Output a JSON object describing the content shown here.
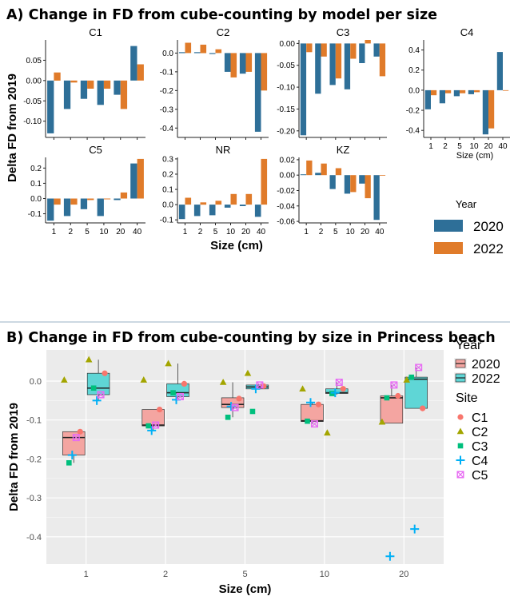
{
  "figure": {
    "panel_a_title": "A) Change in FD from cube-counting by model per size",
    "panel_b_title": "B) Change in FD from cube-counting by size in Princess beach"
  },
  "chart_data": [
    {
      "type": "bar",
      "title": "A) Change in FD from cube-counting by model per size",
      "xlabel": "Size (cm)",
      "ylabel": "Delta FD from 2019",
      "categories": [
        "1",
        "2",
        "5",
        "10",
        "20",
        "40"
      ],
      "legend": {
        "title": "Year",
        "entries": [
          "2020",
          "2022"
        ],
        "colors": [
          "#2e6f98",
          "#e07b2a"
        ],
        "placement": "right"
      },
      "colors": {
        "2020": "#2e6f98",
        "2022": "#e07b2a"
      },
      "panels": [
        {
          "title": "C1",
          "ylim": [
            -0.14,
            0.1
          ],
          "yticks": [
            0.05,
            0.0,
            -0.05,
            -0.1
          ],
          "ytick_labels": [
            "0.05",
            "0.00",
            "-0.05",
            "-0.10"
          ],
          "series": [
            {
              "name": "2020",
              "values": [
                -0.13,
                -0.07,
                -0.045,
                -0.06,
                -0.035,
                0.085
              ]
            },
            {
              "name": "2022",
              "values": [
                0.02,
                -0.005,
                -0.02,
                -0.02,
                -0.07,
                0.04
              ]
            }
          ]
        },
        {
          "title": "C2",
          "ylim": [
            -0.45,
            0.07
          ],
          "yticks": [
            0.0,
            -0.1,
            -0.2,
            -0.3,
            -0.4
          ],
          "ytick_labels": [
            "0.0",
            "-0.1",
            "-0.2",
            "-0.3",
            "-0.4"
          ],
          "series": [
            {
              "name": "2020",
              "values": [
                0.005,
                0.005,
                -0.005,
                -0.1,
                -0.11,
                -0.42
              ]
            },
            {
              "name": "2022",
              "values": [
                0.055,
                0.045,
                0.02,
                -0.13,
                -0.1,
                -0.2
              ]
            }
          ]
        },
        {
          "title": "C3",
          "ylim": [
            -0.215,
            0.008
          ],
          "yticks": [
            0.0,
            -0.05,
            -0.1,
            -0.15,
            -0.2
          ],
          "ytick_labels": [
            "0.00",
            "-0.05",
            "-0.10",
            "-0.15",
            "-0.20"
          ],
          "series": [
            {
              "name": "2020",
              "values": [
                -0.21,
                -0.115,
                -0.095,
                -0.105,
                -0.045,
                -0.03
              ]
            },
            {
              "name": "2022",
              "values": [
                -0.02,
                -0.03,
                -0.08,
                -0.035,
                0.01,
                -0.075
              ]
            }
          ]
        },
        {
          "title": "C4",
          "ylim": [
            -0.47,
            0.5
          ],
          "yticks": [
            0.4,
            0.2,
            0.0,
            -0.2,
            -0.4
          ],
          "ytick_labels": [
            "0.4",
            "0.2",
            "0.0",
            "-0.2",
            "-0.4"
          ],
          "series": [
            {
              "name": "2020",
              "values": [
                -0.19,
                -0.13,
                -0.06,
                -0.04,
                -0.44,
                0.38
              ]
            },
            {
              "name": "2022",
              "values": [
                -0.05,
                -0.03,
                -0.03,
                -0.02,
                -0.38,
                0.0
              ]
            }
          ]
        },
        {
          "title": "C5",
          "ylim": [
            -0.16,
            0.27
          ],
          "yticks": [
            0.2,
            0.1,
            0.0,
            -0.1
          ],
          "ytick_labels": [
            "0.2",
            "0.1",
            "0.0",
            "-0.1"
          ],
          "series": [
            {
              "name": "2020",
              "values": [
                -0.145,
                -0.115,
                -0.07,
                -0.115,
                -0.01,
                0.23
              ]
            },
            {
              "name": "2022",
              "values": [
                -0.04,
                -0.04,
                -0.01,
                -0.005,
                0.04,
                0.26
              ]
            }
          ]
        },
        {
          "title": "NR",
          "ylim": [
            -0.12,
            0.31
          ],
          "yticks": [
            0.3,
            0.2,
            0.1,
            0.0,
            -0.1
          ],
          "ytick_labels": [
            "0.3",
            "0.2",
            "0.1",
            "0.0",
            "-0.1"
          ],
          "series": [
            {
              "name": "2020",
              "values": [
                -0.095,
                -0.075,
                -0.07,
                -0.02,
                -0.01,
                -0.08
              ]
            },
            {
              "name": "2022",
              "values": [
                0.045,
                0.015,
                0.025,
                0.07,
                0.07,
                0.3
              ]
            }
          ]
        },
        {
          "title": "KZ",
          "ylim": [
            -0.062,
            0.023
          ],
          "yticks": [
            0.02,
            0.0,
            -0.02,
            -0.04,
            -0.06
          ],
          "ytick_labels": [
            "0.02",
            "0.00",
            "-0.02",
            "-0.04",
            "-0.06"
          ],
          "series": [
            {
              "name": "2020",
              "values": [
                0.001,
                0.003,
                -0.018,
                -0.024,
                -0.011,
                -0.058
              ]
            },
            {
              "name": "2022",
              "values": [
                0.019,
                0.015,
                0.009,
                -0.022,
                -0.03,
                0.0
              ]
            }
          ]
        }
      ]
    },
    {
      "type": "box",
      "title": "B) Change in FD from cube-counting by size in Princess beach",
      "xlabel": "Size (cm)",
      "ylabel": "Delta FD from 2019",
      "categories": [
        "1",
        "2",
        "5",
        "10",
        "20"
      ],
      "ylim": [
        -0.47,
        0.08
      ],
      "yticks": [
        0.0,
        -0.1,
        -0.2,
        -0.3,
        -0.4
      ],
      "ytick_labels": [
        "0.0",
        "-0.1",
        "-0.2",
        "-0.3",
        "-0.4"
      ],
      "grid": true,
      "legend": [
        {
          "title": "Year",
          "entries": [
            "2020",
            "2022"
          ],
          "colors": [
            "#f4a5a1",
            "#5fd6d6"
          ],
          "placement": "right"
        },
        {
          "title": "Site",
          "entries": [
            "C1",
            "C2",
            "C3",
            "C4",
            "C5"
          ],
          "colors": [
            "#f8766d",
            "#a3a500",
            "#00bf7d",
            "#00b0f6",
            "#e76bf3"
          ],
          "markers": [
            "circle",
            "triangle",
            "square",
            "plus",
            "boxed-x"
          ],
          "placement": "right"
        }
      ],
      "boxes": [
        {
          "size": "1",
          "year": "2020",
          "q1": -0.19,
          "median": -0.145,
          "q3": -0.13,
          "whisker_low": -0.21,
          "whisker_high": -0.13
        },
        {
          "size": "1",
          "year": "2022",
          "q1": -0.035,
          "median": -0.018,
          "q3": 0.02,
          "whisker_low": -0.05,
          "whisker_high": 0.055
        },
        {
          "size": "2",
          "year": "2020",
          "q1": -0.115,
          "median": -0.113,
          "q3": -0.073,
          "whisker_low": -0.127,
          "whisker_high": -0.073
        },
        {
          "size": "2",
          "year": "2022",
          "q1": -0.04,
          "median": -0.03,
          "q3": -0.007,
          "whisker_low": -0.048,
          "whisker_high": 0.045
        },
        {
          "size": "5",
          "year": "2020",
          "q1": -0.068,
          "median": -0.06,
          "q3": -0.043,
          "whisker_low": -0.093,
          "whisker_high": -0.003
        },
        {
          "size": "5",
          "year": "2022",
          "q1": -0.02,
          "median": -0.015,
          "q3": -0.01,
          "whisker_low": -0.02,
          "whisker_high": -0.01
        },
        {
          "size": "10",
          "year": "2020",
          "q1": -0.104,
          "median": -0.102,
          "q3": -0.06,
          "whisker_low": -0.11,
          "whisker_high": -0.055
        },
        {
          "size": "10",
          "year": "2022",
          "q1": -0.032,
          "median": -0.03,
          "q3": -0.02,
          "whisker_low": -0.035,
          "whisker_high": -0.003
        },
        {
          "size": "20",
          "year": "2020",
          "q1": -0.108,
          "median": -0.043,
          "q3": -0.038,
          "whisker_low": -0.108,
          "whisker_high": -0.01
        },
        {
          "size": "20",
          "year": "2022",
          "q1": -0.07,
          "median": 0.005,
          "q3": 0.01,
          "whisker_low": -0.07,
          "whisker_high": 0.035
        }
      ],
      "points": [
        {
          "size": "1",
          "year": "2020",
          "site": "C1",
          "value": -0.13
        },
        {
          "size": "1",
          "year": "2020",
          "site": "C2",
          "value": 0.003
        },
        {
          "size": "1",
          "year": "2020",
          "site": "C3",
          "value": -0.21
        },
        {
          "size": "1",
          "year": "2020",
          "site": "C4",
          "value": -0.19
        },
        {
          "size": "1",
          "year": "2020",
          "site": "C5",
          "value": -0.145
        },
        {
          "size": "1",
          "year": "2022",
          "site": "C1",
          "value": 0.02
        },
        {
          "size": "1",
          "year": "2022",
          "site": "C2",
          "value": 0.055
        },
        {
          "size": "1",
          "year": "2022",
          "site": "C3",
          "value": -0.018
        },
        {
          "size": "1",
          "year": "2022",
          "site": "C4",
          "value": -0.05
        },
        {
          "size": "1",
          "year": "2022",
          "site": "C5",
          "value": -0.035
        },
        {
          "size": "2",
          "year": "2020",
          "site": "C1",
          "value": -0.073
        },
        {
          "size": "2",
          "year": "2020",
          "site": "C2",
          "value": 0.003
        },
        {
          "size": "2",
          "year": "2020",
          "site": "C3",
          "value": -0.115
        },
        {
          "size": "2",
          "year": "2020",
          "site": "C4",
          "value": -0.127
        },
        {
          "size": "2",
          "year": "2020",
          "site": "C5",
          "value": -0.113
        },
        {
          "size": "2",
          "year": "2022",
          "site": "C1",
          "value": -0.007
        },
        {
          "size": "2",
          "year": "2022",
          "site": "C2",
          "value": 0.045
        },
        {
          "size": "2",
          "year": "2022",
          "site": "C3",
          "value": -0.03
        },
        {
          "size": "2",
          "year": "2022",
          "site": "C4",
          "value": -0.048
        },
        {
          "size": "2",
          "year": "2022",
          "site": "C5",
          "value": -0.04
        },
        {
          "size": "5",
          "year": "2020",
          "site": "C1",
          "value": -0.045
        },
        {
          "size": "5",
          "year": "2020",
          "site": "C2",
          "value": -0.003
        },
        {
          "size": "5",
          "year": "2020",
          "site": "C3",
          "value": -0.093
        },
        {
          "size": "5",
          "year": "2020",
          "site": "C4",
          "value": -0.065
        },
        {
          "size": "5",
          "year": "2020",
          "site": "C5",
          "value": -0.068
        },
        {
          "size": "5",
          "year": "2022",
          "site": "C1",
          "value": -0.013
        },
        {
          "size": "5",
          "year": "2022",
          "site": "C2",
          "value": 0.02
        },
        {
          "size": "5",
          "year": "2022",
          "site": "C3",
          "value": -0.078
        },
        {
          "size": "5",
          "year": "2022",
          "site": "C4",
          "value": -0.02
        },
        {
          "size": "5",
          "year": "2022",
          "site": "C5",
          "value": -0.01
        },
        {
          "size": "10",
          "year": "2020",
          "site": "C1",
          "value": -0.06
        },
        {
          "size": "10",
          "year": "2020",
          "site": "C2",
          "value": -0.02
        },
        {
          "size": "10",
          "year": "2020",
          "site": "C3",
          "value": -0.103
        },
        {
          "size": "10",
          "year": "2020",
          "site": "C4",
          "value": -0.055
        },
        {
          "size": "10",
          "year": "2020",
          "site": "C5",
          "value": -0.11
        },
        {
          "size": "10",
          "year": "2022",
          "site": "C1",
          "value": -0.02
        },
        {
          "size": "10",
          "year": "2022",
          "site": "C2",
          "value": -0.133
        },
        {
          "size": "10",
          "year": "2022",
          "site": "C3",
          "value": -0.032
        },
        {
          "size": "10",
          "year": "2022",
          "site": "C4",
          "value": -0.03
        },
        {
          "size": "10",
          "year": "2022",
          "site": "C5",
          "value": -0.003
        },
        {
          "size": "20",
          "year": "2020",
          "site": "C1",
          "value": -0.038
        },
        {
          "size": "20",
          "year": "2020",
          "site": "C2",
          "value": -0.105
        },
        {
          "size": "20",
          "year": "2020",
          "site": "C3",
          "value": -0.043
        },
        {
          "size": "20",
          "year": "2020",
          "site": "C4",
          "value": -0.45
        },
        {
          "size": "20",
          "year": "2020",
          "site": "C5",
          "value": -0.01
        },
        {
          "size": "20",
          "year": "2022",
          "site": "C1",
          "value": -0.07
        },
        {
          "size": "20",
          "year": "2022",
          "site": "C2",
          "value": 0.003
        },
        {
          "size": "20",
          "year": "2022",
          "site": "C3",
          "value": 0.01
        },
        {
          "size": "20",
          "year": "2022",
          "site": "C4",
          "value": -0.38
        },
        {
          "size": "20",
          "year": "2022",
          "site": "C5",
          "value": 0.035
        }
      ]
    }
  ]
}
